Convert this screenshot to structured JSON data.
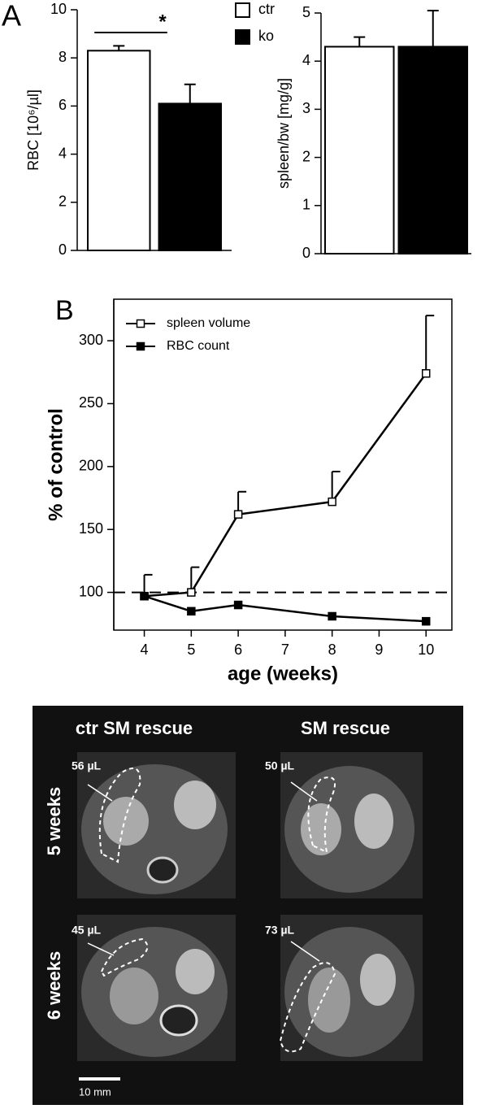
{
  "panel_labels": [
    "A",
    "B"
  ],
  "chart_data": [
    {
      "type": "bar",
      "ylabel": "RBC [10⁶/µl]",
      "categories": [
        null
      ],
      "series": [
        {
          "name": "ctr",
          "color": "#ffffff",
          "values": [
            8.3
          ],
          "errors": [
            0.2
          ]
        },
        {
          "name": "ko",
          "color": "#000000",
          "values": [
            6.1
          ],
          "errors": [
            0.8
          ]
        }
      ],
      "ylim": [
        0,
        10
      ],
      "yticks": [
        0,
        2,
        4,
        6,
        8,
        10
      ],
      "annotation": "*"
    },
    {
      "type": "bar",
      "ylabel": "spleen/bw [mg/g]",
      "categories": [
        null
      ],
      "series": [
        {
          "color": "#ffffff",
          "values": [
            4.3
          ],
          "errors": [
            0.2
          ]
        },
        {
          "color": "#000000",
          "values": [
            4.3
          ],
          "errors": [
            0.75
          ]
        }
      ],
      "ylim": [
        0,
        5
      ],
      "yticks": [
        0,
        1,
        2,
        3,
        4,
        5
      ]
    },
    {
      "type": "line",
      "ylabel": "% of control",
      "xlabel": "age (weeks)",
      "x": [
        4,
        5,
        6,
        8,
        10
      ],
      "series": [
        {
          "name": "spleen volume",
          "color": "#000000",
          "marker": "square-open",
          "values": [
            97,
            100,
            162,
            172,
            274
          ],
          "errors": [
            17,
            20,
            18,
            24,
            46
          ]
        },
        {
          "name": "RBC count",
          "color": "#000000",
          "marker": "square-filled",
          "values": [
            97,
            85,
            90,
            81,
            77
          ]
        }
      ],
      "xlim": [
        3.35,
        10.55
      ],
      "xticks": [
        4,
        5,
        6,
        7,
        8,
        9,
        10
      ],
      "ylim": [
        70,
        333
      ],
      "yticks": [
        100,
        150,
        200,
        250,
        300
      ],
      "reference_line": 100,
      "frame": true
    }
  ],
  "image_panel": {
    "columns": [
      "ctr SM rescue",
      "SM rescue"
    ],
    "rows": [
      "5 weeks",
      "6 weeks"
    ],
    "volumes": [
      "56 µL",
      "50 µL",
      "45 µL",
      "73 µL"
    ],
    "scale_bar": "10 mm"
  }
}
